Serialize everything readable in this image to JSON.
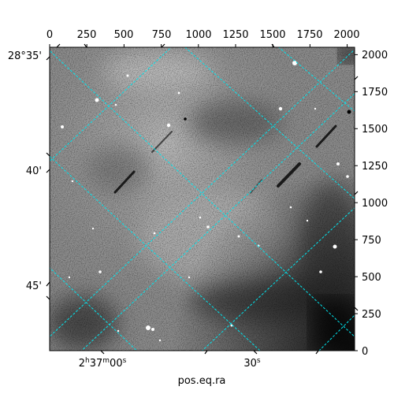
{
  "figure": {
    "xlabel": "pos.eq.ra",
    "grid_color": "#00e5ee"
  },
  "chart_data": {
    "type": "heatmap",
    "title": "",
    "xlabel": "pos.eq.ra",
    "ylabel": "",
    "pixel_axes": {
      "top_ticks": [
        "0",
        "250",
        "500",
        "750",
        "1000",
        "1250",
        "1500",
        "1750",
        "2000"
      ],
      "right_ticks": [
        "0",
        "250",
        "500",
        "750",
        "1000",
        "1250",
        "1500",
        "1750",
        "2000"
      ],
      "xlim": [
        0,
        2050
      ],
      "ylim": [
        0,
        2050
      ]
    },
    "world_axes": {
      "ra_ticks": [
        "2h37m00s",
        "30s"
      ],
      "dec_ticks": [
        "28°35'",
        "40'",
        "45'"
      ]
    },
    "grid": true,
    "colormap": "gray"
  }
}
